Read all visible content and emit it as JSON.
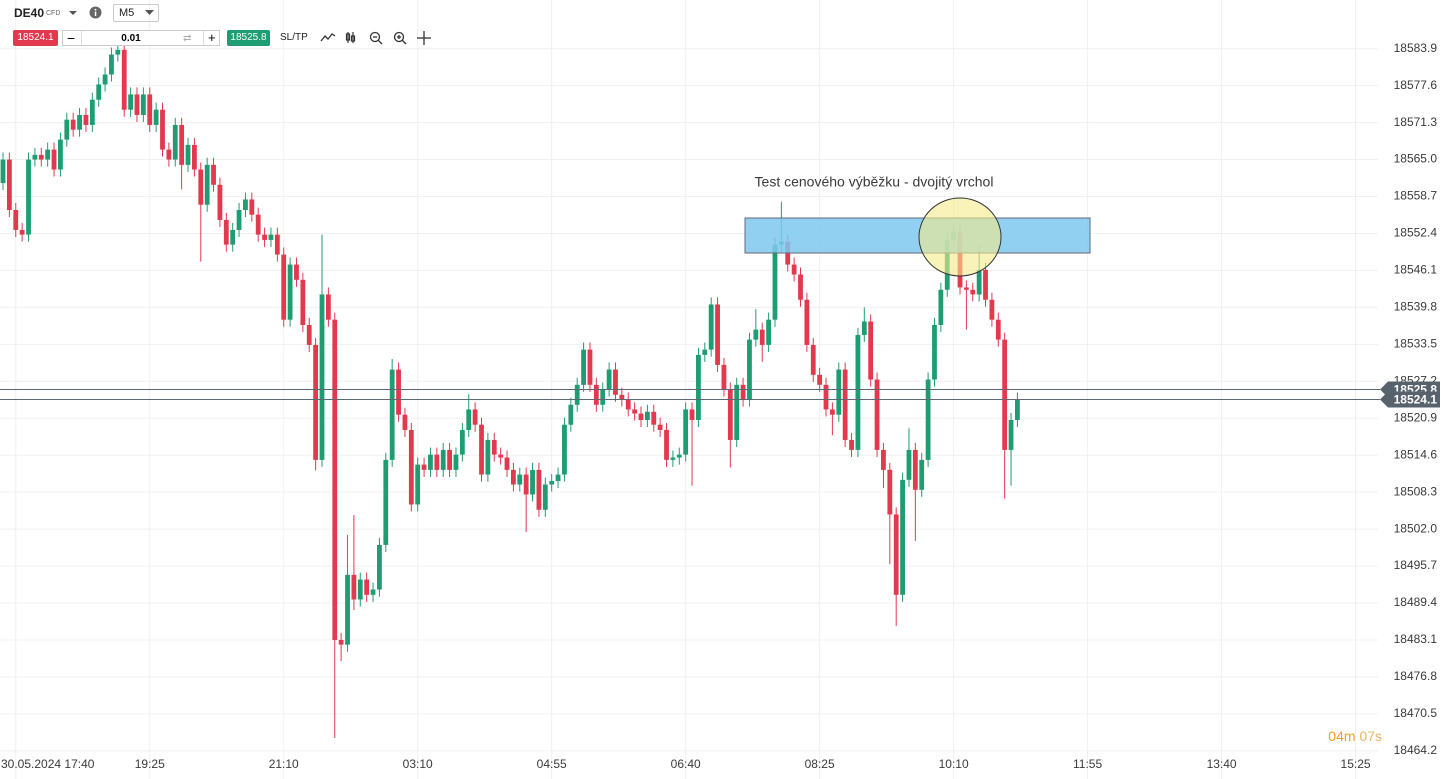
{
  "toolbar": {
    "symbol": "DE40",
    "symbol_type": "CFD",
    "timeframe": "M5",
    "bid": "18524.1",
    "quantity": "0.01",
    "ask": "18525.8",
    "sltp": "SL/TP"
  },
  "timer": {
    "minutes": "04m",
    "seconds": "07s"
  },
  "chart_data": {
    "type": "candlestick",
    "annotation": "Test cenového výběžku - dvojitý vrchol",
    "up_color": "#1f9d72",
    "down_color": "#e2394f",
    "grid": true,
    "ylim": [
      18459.4,
      18592.2
    ],
    "yticks": [
      18583.9,
      18577.6,
      18571.3,
      {
        "value": 18565,
        "label": "18565.0"
      },
      18558.7,
      18552.4,
      18546.1,
      18539.8,
      18533.5,
      18527.2,
      18520.9,
      18514.6,
      18508.3,
      {
        "value": 18502,
        "label": "18502.0"
      },
      18495.7,
      18489.4,
      18483.1,
      18476.8,
      18470.5,
      18464.2
    ],
    "price_lines": [
      {
        "name": "ask",
        "value": 18525.8
      },
      {
        "name": "bid",
        "value": 18524.1
      }
    ],
    "categories": [
      null,
      null,
      "30.05.2024 17:40",
      null,
      null,
      null,
      null,
      null,
      null,
      null,
      null,
      null,
      null,
      null,
      null,
      null,
      null,
      null,
      null,
      null,
      null,
      null,
      null,
      "19:25",
      null,
      null,
      null,
      null,
      null,
      null,
      null,
      null,
      null,
      null,
      null,
      null,
      null,
      null,
      null,
      null,
      null,
      null,
      null,
      null,
      "21:10",
      null,
      null,
      null,
      null,
      null,
      null,
      null,
      null,
      null,
      null,
      null,
      null,
      null,
      null,
      null,
      null,
      null,
      null,
      null,
      null,
      "03:10",
      null,
      null,
      null,
      null,
      null,
      null,
      null,
      null,
      null,
      null,
      null,
      null,
      null,
      null,
      null,
      null,
      null,
      null,
      null,
      null,
      "04:55",
      null,
      null,
      null,
      null,
      null,
      null,
      null,
      null,
      null,
      null,
      null,
      null,
      null,
      null,
      null,
      null,
      null,
      null,
      null,
      null,
      "06:40",
      null,
      null,
      null,
      null,
      null,
      null,
      null,
      null,
      null,
      null,
      null,
      null,
      null,
      null,
      null,
      null,
      null,
      null,
      null,
      null,
      "08:25",
      null,
      null,
      null,
      null,
      null,
      null,
      null,
      null,
      null,
      null,
      null,
      null,
      null,
      null,
      null,
      null,
      null,
      null,
      null,
      null,
      "10:10",
      null,
      null,
      null,
      null,
      null,
      null,
      null,
      null,
      null,
      null,
      null,
      null,
      null,
      null,
      null,
      null,
      null,
      null,
      null,
      null,
      "11:55",
      null,
      null,
      null,
      null,
      null,
      null,
      null,
      null,
      null,
      null,
      null,
      null,
      null,
      null,
      null,
      null,
      null,
      null,
      null,
      null,
      "13:40",
      null,
      null,
      null,
      null,
      null,
      null,
      null,
      null,
      null,
      null,
      null,
      null,
      null,
      null,
      null,
      null,
      null,
      null,
      null,
      null,
      "15:25",
      null,
      null,
      null
    ],
    "open": [
      18561.0,
      18565.0,
      18556.4,
      18553.0,
      18552.2,
      18565.0,
      18565.8,
      18565.0,
      18566.7,
      18563.3,
      18568.4,
      18571.8,
      18570.1,
      18572.6,
      18570.9,
      18575.2,
      18577.8,
      18579.5,
      18582.9,
      18583.7,
      18573.5,
      18576.1,
      18572.6,
      18576.1,
      18570.9,
      18573.5,
      18566.7,
      18565.0,
      18570.9,
      18564.1,
      18567.5,
      18563.3,
      18557.3,
      18564.1,
      18560.7,
      18554.7,
      18550.5,
      18553.0,
      18556.4,
      18558.2,
      18555.6,
      18552.2,
      18551.3,
      18552.2,
      18548.8,
      18537.7,
      18547.1,
      18544.5,
      18536.8,
      18533.4,
      18513.8,
      18542.0,
      18537.7,
      18483.1,
      18482.3,
      18494.2,
      18490.0,
      18493.4,
      18490.8,
      18491.7,
      18499.3,
      18513.8,
      18529.2,
      18521.5,
      18518.9,
      18506.2,
      18513.0,
      18512.1,
      18514.7,
      18512.1,
      18515.5,
      18512.1,
      18514.7,
      18518.9,
      18522.4,
      18519.8,
      18511.3,
      18517.2,
      18514.7,
      18514.2,
      18512.1,
      18509.6,
      18511.3,
      18507.9,
      18512.1,
      18505.3,
      18509.6,
      18510.2,
      18511.3,
      18519.8,
      18523.2,
      18526.6,
      18532.6,
      18526.6,
      18523.2,
      18525.8,
      18529.2,
      18524.9,
      18524.1,
      18522.4,
      18521.7,
      18520.6,
      18522.0,
      18519.8,
      18518.9,
      18513.8,
      18514.2,
      18514.7,
      18522.4,
      18520.6,
      18531.7,
      18532.6,
      18540.3,
      18530.0,
      18525.8,
      18517.2,
      18526.6,
      18524.1,
      18534.3,
      18536.0,
      18533.4,
      18537.7,
      18550.5,
      18551.0,
      18547.1,
      18545.4,
      18541.1,
      18533.4,
      18528.3,
      18526.6,
      18522.4,
      18521.5,
      18529.2,
      18517.2,
      18515.5,
      18535.1,
      18537.4,
      18527.5,
      18515.5,
      18512.1,
      18504.5,
      18490.8,
      18510.4,
      18515.5,
      18508.7,
      18513.8,
      18527.5,
      18536.8,
      18542.8,
      18551.3,
      18552.7,
      18543.2,
      18542.8,
      18542.0,
      18546.2,
      18541.1,
      18537.7,
      18534.3,
      18515.5,
      18520.6,
      null,
      null,
      null,
      null,
      null,
      null,
      null,
      null,
      null,
      null,
      null,
      null,
      null,
      null,
      null,
      null,
      null,
      null,
      null,
      null,
      null,
      null,
      null,
      null,
      null,
      null,
      null,
      null,
      null,
      null,
      null,
      null,
      null,
      null,
      null,
      null,
      null,
      null,
      null,
      null,
      null,
      null,
      null,
      null,
      null,
      null,
      null,
      null,
      null,
      null,
      null,
      null,
      null,
      null,
      null,
      null
    ],
    "high": [
      18566.2,
      18566.2,
      18557.6,
      18554.2,
      18566.2,
      18567.0,
      18567.0,
      18567.9,
      18567.9,
      18569.6,
      18573.0,
      18573.0,
      18573.8,
      18573.8,
      18576.4,
      18579.0,
      18580.7,
      18584.1,
      18585.0,
      18584.9,
      18577.3,
      18577.3,
      18577.3,
      18577.3,
      18574.7,
      18574.7,
      18567.9,
      18572.1,
      18572.1,
      18568.7,
      18568.7,
      18564.5,
      18565.3,
      18565.3,
      18561.9,
      18555.9,
      18554.2,
      18557.6,
      18559.4,
      18559.4,
      18556.8,
      18553.4,
      18553.4,
      18553.4,
      18550.0,
      18548.3,
      18548.3,
      18545.7,
      18538.0,
      18534.6,
      18552.2,
      18543.2,
      18538.9,
      18484.3,
      18501.0,
      18504.4,
      18494.6,
      18494.6,
      18492.9,
      18500.5,
      18515.0,
      18531.0,
      18530.4,
      18522.7,
      18520.1,
      18514.2,
      18514.2,
      18515.9,
      18515.9,
      18516.7,
      18516.7,
      18515.9,
      18520.1,
      18525.0,
      18523.6,
      18521.0,
      18518.4,
      18518.4,
      18515.9,
      18515.4,
      18513.3,
      18512.5,
      18512.5,
      18513.3,
      18513.3,
      18510.8,
      18511.4,
      18512.5,
      18521.0,
      18524.4,
      18527.8,
      18533.8,
      18533.8,
      18527.8,
      18527.0,
      18530.4,
      18530.4,
      18526.1,
      18525.3,
      18523.6,
      18522.9,
      18523.2,
      18523.2,
      18521.0,
      18520.1,
      18515.4,
      18515.9,
      18523.6,
      18523.6,
      18532.9,
      18533.8,
      18541.5,
      18541.5,
      18531.2,
      18527.0,
      18527.8,
      18527.8,
      18535.5,
      18539.5,
      18537.2,
      18538.9,
      18551.7,
      18557.8,
      18552.2,
      18548.3,
      18546.6,
      18542.3,
      18534.6,
      18529.5,
      18527.8,
      18523.6,
      18530.4,
      18530.4,
      18518.4,
      18536.3,
      18539.8,
      18538.6,
      18528.7,
      18516.7,
      18513.3,
      18505.7,
      18511.6,
      18519.2,
      18516.7,
      18515.0,
      18528.7,
      18538.0,
      18544.0,
      18552.5,
      18553.9,
      18553.9,
      18544.4,
      18544.0,
      18550.5,
      18547.4,
      18542.3,
      18538.9,
      18535.5,
      18521.8,
      18525.3,
      null,
      null,
      null,
      null,
      null,
      null,
      null,
      null,
      null,
      null,
      null,
      null,
      null,
      null,
      null,
      null,
      null,
      null,
      null,
      null,
      null,
      null,
      null,
      null,
      null,
      null,
      null,
      null,
      null,
      null,
      null,
      null,
      null,
      null,
      null,
      null,
      null,
      null,
      null,
      null,
      null,
      null,
      null,
      null,
      null,
      null,
      null,
      null,
      null,
      null,
      null,
      null,
      null,
      null,
      null,
      null
    ],
    "low": [
      18559.8,
      18555.2,
      18551.8,
      18551.0,
      18551.0,
      18563.8,
      18563.8,
      18563.8,
      18562.1,
      18562.1,
      18567.2,
      18568.9,
      18568.9,
      18569.7,
      18569.7,
      18574.0,
      18576.6,
      18578.3,
      18581.7,
      18572.3,
      18572.3,
      18571.4,
      18571.4,
      18569.7,
      18569.7,
      18565.5,
      18563.8,
      18563.8,
      18559.9,
      18562.9,
      18562.1,
      18547.6,
      18556.1,
      18559.5,
      18553.5,
      18549.3,
      18549.3,
      18551.8,
      18555.2,
      18554.4,
      18551.0,
      18550.1,
      18550.1,
      18547.6,
      18536.5,
      18536.5,
      18543.3,
      18535.6,
      18532.2,
      18512.0,
      18512.6,
      18536.5,
      18466.4,
      18479.5,
      18481.1,
      18488.2,
      18488.8,
      18489.6,
      18489.6,
      18490.5,
      18498.1,
      18512.6,
      18520.3,
      18517.7,
      18505.0,
      18505.0,
      18510.9,
      18510.9,
      18510.9,
      18510.9,
      18510.9,
      18510.9,
      18513.5,
      18517.7,
      18518.6,
      18510.1,
      18510.1,
      18513.5,
      18513.0,
      18510.9,
      18508.4,
      18508.4,
      18501.5,
      18506.7,
      18504.1,
      18504.1,
      18508.4,
      18509.0,
      18510.1,
      18518.6,
      18522.0,
      18525.4,
      18525.4,
      18522.0,
      18522.0,
      18524.6,
      18523.7,
      18522.9,
      18521.2,
      18520.5,
      18519.4,
      18519.4,
      18518.6,
      18517.7,
      18512.6,
      18512.6,
      18513.0,
      18513.5,
      18509.4,
      18519.4,
      18530.5,
      18531.4,
      18528.8,
      18524.6,
      18512.5,
      18516.0,
      18522.9,
      18522.9,
      18533.1,
      18530.5,
      18532.2,
      18536.5,
      18549.3,
      18545.9,
      18544.2,
      18539.9,
      18532.2,
      18527.1,
      18525.4,
      18521.2,
      18518.0,
      18520.3,
      18516.0,
      18514.3,
      18514.3,
      18533.9,
      18526.3,
      18514.3,
      18509.0,
      18496.0,
      18485.5,
      18489.6,
      18509.2,
      18500.0,
      18507.5,
      18512.6,
      18526.3,
      18535.6,
      18541.6,
      18550.1,
      18542.0,
      18536.0,
      18540.8,
      18540.8,
      18539.9,
      18536.5,
      18533.1,
      18507.2,
      18509.4,
      18519.4,
      null,
      null,
      null,
      null,
      null,
      null,
      null,
      null,
      null,
      null,
      null,
      null,
      null,
      null,
      null,
      null,
      null,
      null,
      null,
      null,
      null,
      null,
      null,
      null,
      null,
      null,
      null,
      null,
      null,
      null,
      null,
      null,
      null,
      null,
      null,
      null,
      null,
      null,
      null,
      null,
      null,
      null,
      null,
      null,
      null,
      null,
      null,
      null,
      null,
      null,
      null,
      null,
      null,
      null,
      null,
      null
    ],
    "close": [
      18565.0,
      18556.4,
      18553.0,
      18552.2,
      18565.0,
      18565.8,
      18565.0,
      18566.7,
      18563.3,
      18568.4,
      18571.8,
      18570.1,
      18572.6,
      18570.9,
      18575.2,
      18577.8,
      18579.5,
      18582.9,
      18583.7,
      18573.5,
      18576.1,
      18572.6,
      18576.1,
      18570.9,
      18573.5,
      18566.7,
      18565.0,
      18570.9,
      18564.1,
      18567.5,
      18563.3,
      18557.3,
      18564.1,
      18560.7,
      18554.7,
      18550.5,
      18553.0,
      18556.4,
      18558.2,
      18555.6,
      18552.2,
      18551.3,
      18552.2,
      18548.8,
      18537.7,
      18547.1,
      18544.5,
      18536.8,
      18533.4,
      18513.8,
      18542.0,
      18537.7,
      18483.1,
      18482.3,
      18494.2,
      18490.0,
      18493.4,
      18490.8,
      18491.7,
      18499.3,
      18513.8,
      18529.2,
      18521.5,
      18518.9,
      18506.2,
      18513.0,
      18512.1,
      18514.7,
      18512.1,
      18515.5,
      18512.1,
      18514.7,
      18518.9,
      18522.4,
      18519.8,
      18511.3,
      18517.2,
      18514.7,
      18514.2,
      18512.1,
      18509.6,
      18511.3,
      18507.9,
      18512.1,
      18505.3,
      18509.6,
      18510.2,
      18511.3,
      18519.8,
      18523.2,
      18526.6,
      18532.6,
      18526.6,
      18523.2,
      18525.8,
      18529.2,
      18524.9,
      18524.1,
      18522.4,
      18521.7,
      18520.6,
      18522.0,
      18519.8,
      18518.9,
      18513.8,
      18514.2,
      18514.7,
      18522.4,
      18520.6,
      18531.7,
      18532.6,
      18540.3,
      18530.0,
      18525.8,
      18517.2,
      18526.6,
      18524.1,
      18534.3,
      18536.0,
      18533.4,
      18537.7,
      18550.5,
      18551.0,
      18547.1,
      18545.4,
      18541.1,
      18533.4,
      18528.3,
      18526.6,
      18522.4,
      18521.5,
      18529.2,
      18517.2,
      18515.5,
      18535.1,
      18537.4,
      18527.5,
      18515.5,
      18512.1,
      18504.5,
      18490.8,
      18510.4,
      18515.5,
      18508.7,
      18513.8,
      18527.5,
      18536.8,
      18542.8,
      18551.3,
      18552.7,
      18543.2,
      18542.8,
      18542.0,
      18546.2,
      18541.1,
      18537.7,
      18534.3,
      18515.5,
      18520.6,
      18524.1,
      null,
      null,
      null,
      null,
      null,
      null,
      null,
      null,
      null,
      null,
      null,
      null,
      null,
      null,
      null,
      null,
      null,
      null,
      null,
      null,
      null,
      null,
      null,
      null,
      null,
      null,
      null,
      null,
      null,
      null,
      null,
      null,
      null,
      null,
      null,
      null,
      null,
      null,
      null,
      null,
      null,
      null,
      null,
      null,
      null,
      null,
      null,
      null,
      null,
      null,
      null,
      null,
      null,
      null,
      null,
      null
    ]
  }
}
